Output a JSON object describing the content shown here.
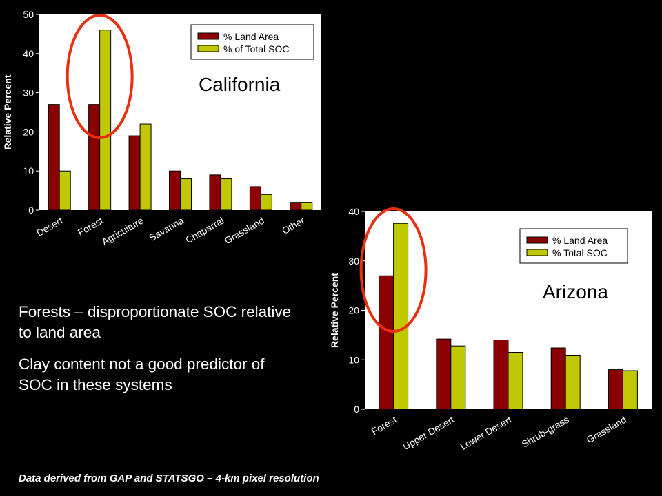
{
  "chart_data": [
    {
      "type": "bar",
      "title": "California",
      "ylabel": "Relative Percent",
      "xlabel": "",
      "ylim": [
        0,
        50
      ],
      "yticks": [
        0,
        10,
        20,
        30,
        40,
        50
      ],
      "categories": [
        "Desert",
        "Forest",
        "Agriculture",
        "Savanna",
        "Chaparral",
        "Grassland",
        "Other"
      ],
      "series": [
        {
          "name": "% Land Area",
          "color": "#8B0000",
          "values": [
            27,
            27,
            19,
            10,
            9,
            6,
            2
          ]
        },
        {
          "name": "% of Total SOC",
          "color": "#BFC800",
          "values": [
            10,
            46,
            22,
            8,
            8,
            4,
            2
          ]
        }
      ],
      "grid": false,
      "legend_position": "top-right",
      "highlight_category": "Forest"
    },
    {
      "type": "bar",
      "title": "Arizona",
      "ylabel": "Relative Percent",
      "xlabel": "",
      "ylim": [
        0,
        40
      ],
      "yticks": [
        0,
        10,
        20,
        30,
        40
      ],
      "categories": [
        "Forest",
        "Upper Desert",
        "Lower Desert",
        "Shrub-grass",
        "Grassland"
      ],
      "series": [
        {
          "name": "% Land Area",
          "color": "#8B0000",
          "values": [
            27,
            14.2,
            14,
            12.4,
            8
          ]
        },
        {
          "name": "% Total SOC",
          "color": "#BFC800",
          "values": [
            37.6,
            12.8,
            11.5,
            10.8,
            7.8
          ]
        }
      ],
      "grid": false,
      "legend_position": "top-right",
      "highlight_category": "Forest"
    }
  ],
  "notes": {
    "bullet1": "Forests – disproportionate SOC relative to land area",
    "bullet2": "Clay content not a good predictor of SOC in these systems",
    "footnote": "Data derived from GAP and STATSGO – 4-km pixel resolution"
  },
  "colors": {
    "background": "#000000",
    "plot_area": "#FFFFFF",
    "highlight": "#E83010"
  }
}
